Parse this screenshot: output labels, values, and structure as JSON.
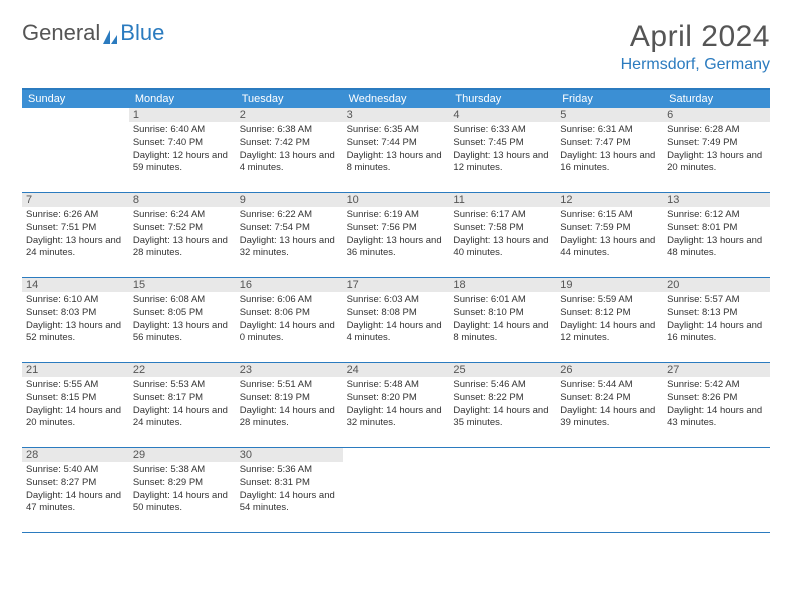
{
  "logo": {
    "word1": "General",
    "word2": "Blue",
    "text_color": "#555555",
    "accent_color": "#2b7bbf"
  },
  "title": {
    "main": "April 2024",
    "sub": "Hermsdorf, Germany",
    "main_color": "#555555",
    "sub_color": "#2b7bbf",
    "main_fontsize": 30,
    "sub_fontsize": 16
  },
  "colors": {
    "header_bg": "#3b8fd4",
    "header_text": "#ffffff",
    "border": "#2b7bbf",
    "daynum_bg": "#e8e8e8",
    "daynum_text": "#555555",
    "body_text": "#333333",
    "background": "#ffffff"
  },
  "day_names": [
    "Sunday",
    "Monday",
    "Tuesday",
    "Wednesday",
    "Thursday",
    "Friday",
    "Saturday"
  ],
  "weeks": [
    [
      {
        "n": "",
        "sunrise": "",
        "sunset": "",
        "daylight": ""
      },
      {
        "n": "1",
        "sunrise": "Sunrise: 6:40 AM",
        "sunset": "Sunset: 7:40 PM",
        "daylight": "Daylight: 12 hours and 59 minutes."
      },
      {
        "n": "2",
        "sunrise": "Sunrise: 6:38 AM",
        "sunset": "Sunset: 7:42 PM",
        "daylight": "Daylight: 13 hours and 4 minutes."
      },
      {
        "n": "3",
        "sunrise": "Sunrise: 6:35 AM",
        "sunset": "Sunset: 7:44 PM",
        "daylight": "Daylight: 13 hours and 8 minutes."
      },
      {
        "n": "4",
        "sunrise": "Sunrise: 6:33 AM",
        "sunset": "Sunset: 7:45 PM",
        "daylight": "Daylight: 13 hours and 12 minutes."
      },
      {
        "n": "5",
        "sunrise": "Sunrise: 6:31 AM",
        "sunset": "Sunset: 7:47 PM",
        "daylight": "Daylight: 13 hours and 16 minutes."
      },
      {
        "n": "6",
        "sunrise": "Sunrise: 6:28 AM",
        "sunset": "Sunset: 7:49 PM",
        "daylight": "Daylight: 13 hours and 20 minutes."
      }
    ],
    [
      {
        "n": "7",
        "sunrise": "Sunrise: 6:26 AM",
        "sunset": "Sunset: 7:51 PM",
        "daylight": "Daylight: 13 hours and 24 minutes."
      },
      {
        "n": "8",
        "sunrise": "Sunrise: 6:24 AM",
        "sunset": "Sunset: 7:52 PM",
        "daylight": "Daylight: 13 hours and 28 minutes."
      },
      {
        "n": "9",
        "sunrise": "Sunrise: 6:22 AM",
        "sunset": "Sunset: 7:54 PM",
        "daylight": "Daylight: 13 hours and 32 minutes."
      },
      {
        "n": "10",
        "sunrise": "Sunrise: 6:19 AM",
        "sunset": "Sunset: 7:56 PM",
        "daylight": "Daylight: 13 hours and 36 minutes."
      },
      {
        "n": "11",
        "sunrise": "Sunrise: 6:17 AM",
        "sunset": "Sunset: 7:58 PM",
        "daylight": "Daylight: 13 hours and 40 minutes."
      },
      {
        "n": "12",
        "sunrise": "Sunrise: 6:15 AM",
        "sunset": "Sunset: 7:59 PM",
        "daylight": "Daylight: 13 hours and 44 minutes."
      },
      {
        "n": "13",
        "sunrise": "Sunrise: 6:12 AM",
        "sunset": "Sunset: 8:01 PM",
        "daylight": "Daylight: 13 hours and 48 minutes."
      }
    ],
    [
      {
        "n": "14",
        "sunrise": "Sunrise: 6:10 AM",
        "sunset": "Sunset: 8:03 PM",
        "daylight": "Daylight: 13 hours and 52 minutes."
      },
      {
        "n": "15",
        "sunrise": "Sunrise: 6:08 AM",
        "sunset": "Sunset: 8:05 PM",
        "daylight": "Daylight: 13 hours and 56 minutes."
      },
      {
        "n": "16",
        "sunrise": "Sunrise: 6:06 AM",
        "sunset": "Sunset: 8:06 PM",
        "daylight": "Daylight: 14 hours and 0 minutes."
      },
      {
        "n": "17",
        "sunrise": "Sunrise: 6:03 AM",
        "sunset": "Sunset: 8:08 PM",
        "daylight": "Daylight: 14 hours and 4 minutes."
      },
      {
        "n": "18",
        "sunrise": "Sunrise: 6:01 AM",
        "sunset": "Sunset: 8:10 PM",
        "daylight": "Daylight: 14 hours and 8 minutes."
      },
      {
        "n": "19",
        "sunrise": "Sunrise: 5:59 AM",
        "sunset": "Sunset: 8:12 PM",
        "daylight": "Daylight: 14 hours and 12 minutes."
      },
      {
        "n": "20",
        "sunrise": "Sunrise: 5:57 AM",
        "sunset": "Sunset: 8:13 PM",
        "daylight": "Daylight: 14 hours and 16 minutes."
      }
    ],
    [
      {
        "n": "21",
        "sunrise": "Sunrise: 5:55 AM",
        "sunset": "Sunset: 8:15 PM",
        "daylight": "Daylight: 14 hours and 20 minutes."
      },
      {
        "n": "22",
        "sunrise": "Sunrise: 5:53 AM",
        "sunset": "Sunset: 8:17 PM",
        "daylight": "Daylight: 14 hours and 24 minutes."
      },
      {
        "n": "23",
        "sunrise": "Sunrise: 5:51 AM",
        "sunset": "Sunset: 8:19 PM",
        "daylight": "Daylight: 14 hours and 28 minutes."
      },
      {
        "n": "24",
        "sunrise": "Sunrise: 5:48 AM",
        "sunset": "Sunset: 8:20 PM",
        "daylight": "Daylight: 14 hours and 32 minutes."
      },
      {
        "n": "25",
        "sunrise": "Sunrise: 5:46 AM",
        "sunset": "Sunset: 8:22 PM",
        "daylight": "Daylight: 14 hours and 35 minutes."
      },
      {
        "n": "26",
        "sunrise": "Sunrise: 5:44 AM",
        "sunset": "Sunset: 8:24 PM",
        "daylight": "Daylight: 14 hours and 39 minutes."
      },
      {
        "n": "27",
        "sunrise": "Sunrise: 5:42 AM",
        "sunset": "Sunset: 8:26 PM",
        "daylight": "Daylight: 14 hours and 43 minutes."
      }
    ],
    [
      {
        "n": "28",
        "sunrise": "Sunrise: 5:40 AM",
        "sunset": "Sunset: 8:27 PM",
        "daylight": "Daylight: 14 hours and 47 minutes."
      },
      {
        "n": "29",
        "sunrise": "Sunrise: 5:38 AM",
        "sunset": "Sunset: 8:29 PM",
        "daylight": "Daylight: 14 hours and 50 minutes."
      },
      {
        "n": "30",
        "sunrise": "Sunrise: 5:36 AM",
        "sunset": "Sunset: 8:31 PM",
        "daylight": "Daylight: 14 hours and 54 minutes."
      },
      {
        "n": "",
        "sunrise": "",
        "sunset": "",
        "daylight": ""
      },
      {
        "n": "",
        "sunrise": "",
        "sunset": "",
        "daylight": ""
      },
      {
        "n": "",
        "sunrise": "",
        "sunset": "",
        "daylight": ""
      },
      {
        "n": "",
        "sunrise": "",
        "sunset": "",
        "daylight": ""
      }
    ]
  ]
}
